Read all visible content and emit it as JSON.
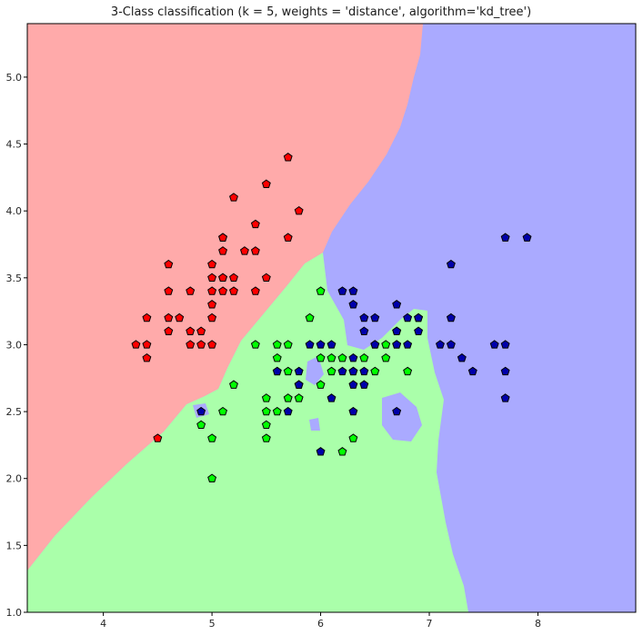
{
  "chart_data": {
    "type": "scatter",
    "title": "3-Class classification (k = 5, weights = 'distance', algorithm='kd_tree')",
    "xlabel": "",
    "ylabel": "",
    "xlim": [
      3.3,
      8.9
    ],
    "ylim": [
      1.0,
      5.4
    ],
    "xticks": [
      4,
      5,
      6,
      7,
      8
    ],
    "yticks": [
      1.0,
      1.5,
      2.0,
      2.5,
      3.0,
      3.5,
      4.0,
      4.5,
      5.0
    ],
    "grid": false,
    "marker": "pentagon",
    "region_colors": {
      "red": "#ffaaaa",
      "green": "#aaffaa",
      "blue": "#aaaaff"
    },
    "series": [
      {
        "color": "#ff0000",
        "points": [
          [
            5.7,
            4.4
          ],
          [
            5.5,
            4.2
          ],
          [
            5.2,
            4.1
          ],
          [
            5.8,
            4.0
          ],
          [
            5.4,
            3.9
          ],
          [
            5.1,
            3.8
          ],
          [
            5.1,
            3.8
          ],
          [
            5.7,
            3.8
          ],
          [
            5.1,
            3.7
          ],
          [
            5.3,
            3.7
          ],
          [
            5.4,
            3.7
          ],
          [
            4.6,
            3.6
          ],
          [
            5.0,
            3.6
          ],
          [
            5.0,
            3.5
          ],
          [
            5.1,
            3.5
          ],
          [
            5.1,
            3.5
          ],
          [
            5.2,
            3.5
          ],
          [
            5.5,
            3.5
          ],
          [
            4.6,
            3.4
          ],
          [
            4.8,
            3.4
          ],
          [
            5.0,
            3.4
          ],
          [
            5.1,
            3.4
          ],
          [
            5.2,
            3.4
          ],
          [
            5.4,
            3.4
          ],
          [
            5.0,
            3.3
          ],
          [
            4.4,
            3.2
          ],
          [
            4.6,
            3.2
          ],
          [
            4.7,
            3.2
          ],
          [
            5.0,
            3.2
          ],
          [
            4.6,
            3.1
          ],
          [
            4.8,
            3.1
          ],
          [
            4.9,
            3.1
          ],
          [
            4.3,
            3.0
          ],
          [
            4.4,
            3.0
          ],
          [
            4.8,
            3.0
          ],
          [
            4.9,
            3.0
          ],
          [
            5.0,
            3.0
          ],
          [
            4.4,
            2.9
          ],
          [
            4.5,
            2.3
          ]
        ]
      },
      {
        "color": "#00ff00",
        "points": [
          [
            6.0,
            3.4
          ],
          [
            5.9,
            3.2
          ],
          [
            6.9,
            3.2
          ],
          [
            6.7,
            3.1
          ],
          [
            6.7,
            3.0
          ],
          [
            5.4,
            3.0
          ],
          [
            5.6,
            3.0
          ],
          [
            5.7,
            3.0
          ],
          [
            6.6,
            3.0
          ],
          [
            6.0,
            2.9
          ],
          [
            6.1,
            2.9
          ],
          [
            6.2,
            2.9
          ],
          [
            6.4,
            2.9
          ],
          [
            5.6,
            2.9
          ],
          [
            6.8,
            2.8
          ],
          [
            5.7,
            2.8
          ],
          [
            6.1,
            2.8
          ],
          [
            5.8,
            2.7
          ],
          [
            5.2,
            2.7
          ],
          [
            6.0,
            2.7
          ],
          [
            5.5,
            2.6
          ],
          [
            5.7,
            2.6
          ],
          [
            5.8,
            2.6
          ],
          [
            5.5,
            2.5
          ],
          [
            5.6,
            2.5
          ],
          [
            4.9,
            2.4
          ],
          [
            5.5,
            2.4
          ],
          [
            5.1,
            2.5
          ],
          [
            5.0,
            2.3
          ],
          [
            5.5,
            2.3
          ],
          [
            6.3,
            2.3
          ],
          [
            6.2,
            2.2
          ],
          [
            5.0,
            2.0
          ],
          [
            6.5,
            2.8
          ],
          [
            6.3,
            2.8
          ],
          [
            6.6,
            2.9
          ],
          [
            5.6,
            2.8
          ]
        ]
      },
      {
        "color": "#0000aa",
        "points": [
          [
            7.7,
            3.8
          ],
          [
            7.9,
            3.8
          ],
          [
            7.2,
            3.6
          ],
          [
            6.2,
            3.4
          ],
          [
            6.3,
            3.4
          ],
          [
            6.3,
            3.3
          ],
          [
            6.7,
            3.3
          ],
          [
            6.4,
            3.2
          ],
          [
            6.5,
            3.2
          ],
          [
            6.8,
            3.2
          ],
          [
            6.9,
            3.2
          ],
          [
            7.2,
            3.2
          ],
          [
            6.4,
            3.1
          ],
          [
            6.7,
            3.1
          ],
          [
            6.9,
            3.1
          ],
          [
            5.9,
            3.0
          ],
          [
            6.0,
            3.0
          ],
          [
            6.1,
            3.0
          ],
          [
            6.5,
            3.0
          ],
          [
            6.5,
            3.0
          ],
          [
            6.7,
            3.0
          ],
          [
            6.8,
            3.0
          ],
          [
            7.1,
            3.0
          ],
          [
            7.2,
            3.0
          ],
          [
            7.6,
            3.0
          ],
          [
            7.7,
            3.0
          ],
          [
            6.3,
            2.9
          ],
          [
            7.3,
            2.9
          ],
          [
            5.6,
            2.8
          ],
          [
            5.8,
            2.8
          ],
          [
            6.2,
            2.8
          ],
          [
            6.3,
            2.8
          ],
          [
            6.4,
            2.8
          ],
          [
            7.4,
            2.8
          ],
          [
            7.7,
            2.8
          ],
          [
            5.8,
            2.7
          ],
          [
            6.3,
            2.7
          ],
          [
            6.4,
            2.7
          ],
          [
            6.1,
            2.6
          ],
          [
            7.7,
            2.6
          ],
          [
            4.9,
            2.5
          ],
          [
            5.7,
            2.5
          ],
          [
            6.3,
            2.5
          ],
          [
            6.7,
            2.5
          ],
          [
            6.0,
            2.2
          ]
        ]
      }
    ]
  }
}
